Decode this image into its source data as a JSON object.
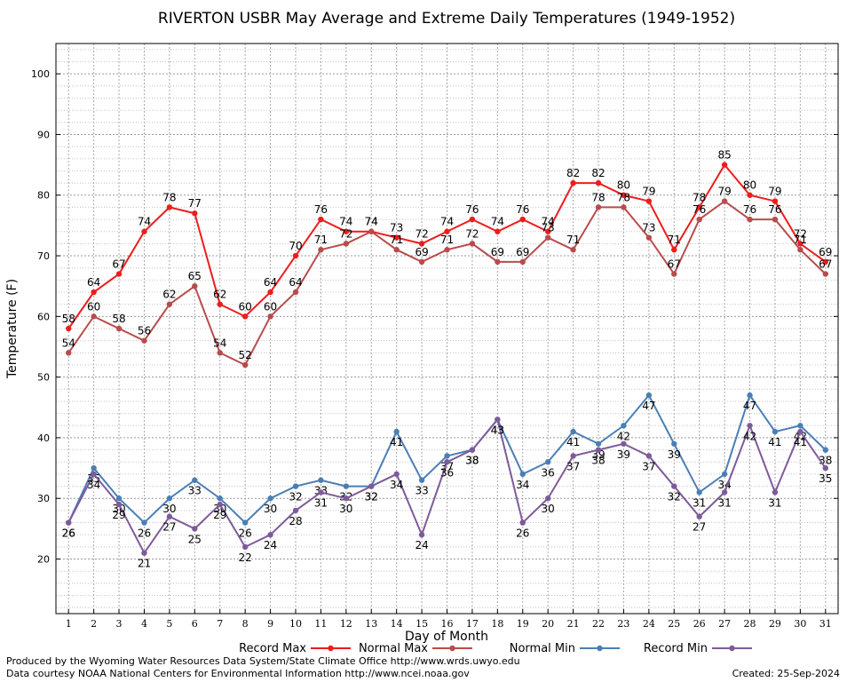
{
  "chart_data": {
    "type": "line",
    "title": "RIVERTON USBR May Average and Extreme Daily Temperatures (1949-1952)",
    "xlabel": "Day of Month",
    "ylabel": "Temperature (F)",
    "x": [
      1,
      2,
      3,
      4,
      5,
      6,
      7,
      8,
      9,
      10,
      11,
      12,
      13,
      14,
      15,
      16,
      17,
      18,
      19,
      20,
      21,
      22,
      23,
      24,
      25,
      26,
      27,
      28,
      29,
      30,
      31
    ],
    "xlim": [
      0.5,
      31.5
    ],
    "ylim": [
      11,
      105
    ],
    "yticks": [
      20,
      30,
      40,
      50,
      60,
      70,
      80,
      90,
      100
    ],
    "grid": true,
    "legend_position": "bottom",
    "series": [
      {
        "name": "Record Max",
        "color": "#ee1c1c",
        "values": [
          58,
          64,
          67,
          74,
          78,
          77,
          62,
          60,
          64,
          70,
          76,
          74,
          74,
          73,
          72,
          74,
          76,
          74,
          76,
          74,
          82,
          82,
          80,
          79,
          71,
          78,
          85,
          80,
          79,
          72,
          69
        ],
        "label_side": "above"
      },
      {
        "name": "Normal Max",
        "color": "#b84c4c",
        "values": [
          54,
          60,
          58,
          56,
          62,
          65,
          54,
          52,
          60,
          64,
          71,
          72,
          74,
          71,
          69,
          71,
          72,
          69,
          69,
          73,
          71,
          78,
          78,
          73,
          67,
          76,
          79,
          76,
          76,
          71,
          67
        ],
        "label_side": "above"
      },
      {
        "name": "Normal Min",
        "color": "#4a7fb6",
        "values": [
          26,
          35,
          30,
          26,
          30,
          33,
          30,
          26,
          30,
          32,
          33,
          32,
          32,
          41,
          33,
          37,
          38,
          43,
          34,
          36,
          41,
          39,
          42,
          47,
          39,
          31,
          34,
          47,
          41,
          42,
          38
        ],
        "label_side": "below"
      },
      {
        "name": "Record Min",
        "color": "#7e5a9b",
        "values": [
          26,
          34,
          29,
          21,
          27,
          25,
          29,
          22,
          24,
          28,
          31,
          30,
          32,
          34,
          24,
          36,
          38,
          43,
          26,
          30,
          37,
          38,
          39,
          37,
          32,
          27,
          31,
          42,
          31,
          41,
          35
        ],
        "label_side": "below"
      }
    ]
  },
  "footer": {
    "produced_by": "Produced by the Wyoming Water Resources Data System/State Climate Office http://www.wrds.uwyo.edu",
    "courtesy": "Data courtesy NOAA National Centers for Environmental Information http://www.ncei.noaa.gov",
    "created": "Created:  25-Sep-2024"
  }
}
